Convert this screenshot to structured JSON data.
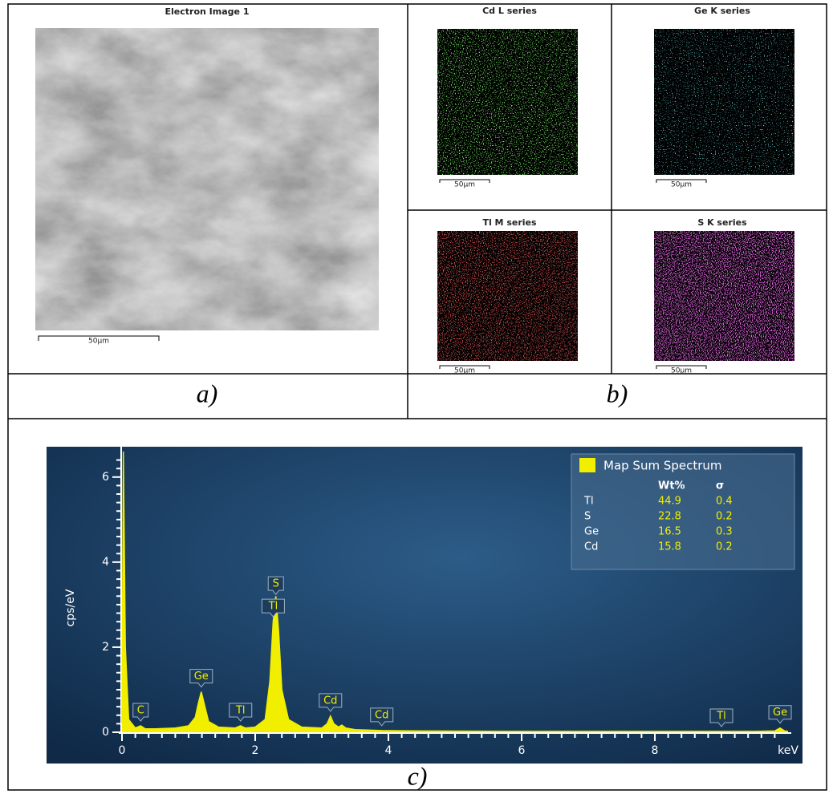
{
  "panels": {
    "a": {
      "title": "Electron Image 1",
      "scale_bar": "50µm",
      "label": "a)"
    },
    "b": {
      "maps": [
        {
          "title": "Cd L series",
          "scale_bar": "50µm"
        },
        {
          "title": "Ge K series",
          "scale_bar": "50µm"
        },
        {
          "title": "Tl M series",
          "scale_bar": "50µm"
        },
        {
          "title": "S K series",
          "scale_bar": "50µm"
        }
      ],
      "label": "b)"
    },
    "c": {
      "label": "c)"
    }
  },
  "chart_data": {
    "type": "area",
    "xlabel": "keV",
    "ylabel": "cps/eV",
    "xlim": [
      0,
      10
    ],
    "ylim": [
      0,
      6.6
    ],
    "xticks": [
      0,
      2,
      4,
      6,
      8
    ],
    "yticks": [
      0,
      2,
      4,
      6
    ],
    "xminorticks": [
      0.2,
      0.4,
      0.6,
      0.8,
      1,
      1.2,
      1.4,
      1.6,
      1.8,
      2.2,
      2.4,
      2.6,
      2.8,
      3,
      3.2,
      3.4,
      3.6,
      3.8,
      4.2,
      4.4,
      4.6,
      4.8,
      5,
      5.2,
      5.4,
      5.6,
      5.8,
      6.2,
      6.4,
      6.6,
      6.8,
      7,
      7.2,
      7.4,
      7.6,
      7.8,
      8.2,
      8.4,
      8.6,
      8.8,
      9,
      9.2,
      9.4,
      9.6,
      9.8
    ],
    "yminorticks": [
      0.2,
      0.4,
      0.6,
      0.8,
      1,
      1.2,
      1.4,
      1.6,
      1.8,
      2.2,
      2.4,
      2.6,
      2.8,
      3,
      3.2,
      3.4,
      3.6,
      3.8,
      4.2,
      4.4,
      4.6,
      4.8,
      5,
      5.2,
      5.4,
      5.6,
      5.8,
      6.2,
      6.4
    ],
    "x": [
      0,
      0.02,
      0.05,
      0.1,
      0.2,
      0.28,
      0.35,
      0.5,
      0.8,
      1.0,
      1.1,
      1.15,
      1.19,
      1.23,
      1.3,
      1.45,
      1.7,
      1.78,
      1.85,
      2.0,
      2.15,
      2.22,
      2.27,
      2.31,
      2.35,
      2.4,
      2.5,
      2.7,
      3.0,
      3.08,
      3.13,
      3.18,
      3.25,
      3.3,
      3.36,
      3.5,
      3.9,
      4.5,
      6,
      8,
      9.0,
      9.5,
      9.8,
      9.88,
      9.95,
      10
    ],
    "series": [
      {
        "name": "Map Sum Spectrum",
        "color": "#f2ee00",
        "values": [
          0.2,
          6.6,
          2.0,
          0.3,
          0.1,
          0.15,
          0.08,
          0.08,
          0.1,
          0.15,
          0.35,
          0.7,
          0.95,
          0.7,
          0.25,
          0.12,
          0.1,
          0.15,
          0.1,
          0.12,
          0.3,
          1.2,
          2.6,
          3.2,
          2.4,
          1.0,
          0.3,
          0.12,
          0.1,
          0.2,
          0.38,
          0.2,
          0.12,
          0.17,
          0.1,
          0.06,
          0.04,
          0.03,
          0.02,
          0.02,
          0.02,
          0.02,
          0.03,
          0.1,
          0.03,
          0.02
        ]
      }
    ],
    "peak_labels": [
      {
        "text": "C",
        "x": 0.28
      },
      {
        "text": "Ge",
        "x": 1.19
      },
      {
        "text": "Tl",
        "x": 1.78
      },
      {
        "text": "Tl",
        "x": 2.27
      },
      {
        "text": "S",
        "x": 2.31
      },
      {
        "text": "Cd",
        "x": 3.13
      },
      {
        "text": "Cd",
        "x": 3.9
      },
      {
        "text": "Tl",
        "x": 9.0
      },
      {
        "text": "Ge",
        "x": 9.88
      }
    ],
    "legend_table": {
      "columns": [
        "Wt%",
        "σ"
      ],
      "rows": [
        {
          "element": "Tl",
          "wt": 44.9,
          "sigma": 0.4
        },
        {
          "element": "S",
          "wt": 22.8,
          "sigma": 0.2
        },
        {
          "element": "Ge",
          "wt": 16.5,
          "sigma": 0.3
        },
        {
          "element": "Cd",
          "wt": 15.8,
          "sigma": 0.2
        }
      ]
    }
  }
}
